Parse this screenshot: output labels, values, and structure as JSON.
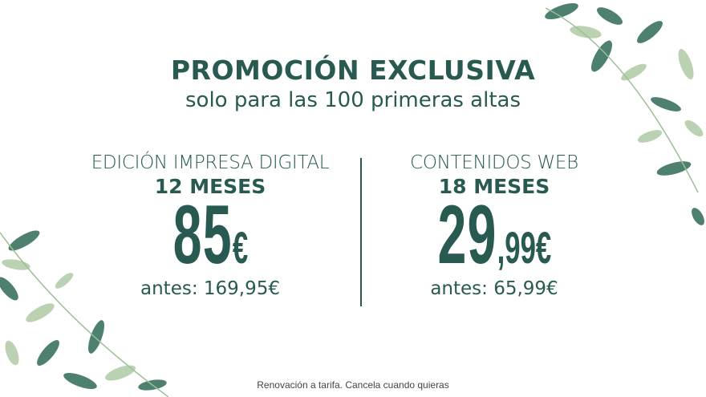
{
  "header": {
    "title": "PROMOCIÓN EXCLUSIVA",
    "subtitle": "solo para las 100 primeras altas"
  },
  "offers": [
    {
      "plan": "EDICIÓN IMPRESA DIGITAL",
      "duration": "12 MESES",
      "price_main": "85",
      "price_decimals": "",
      "currency": "€",
      "previous": "antes: 169,95€"
    },
    {
      "plan": "CONTENIDOS WEB",
      "duration": "18 MESES",
      "price_main": "29",
      "price_decimals": ",99",
      "currency": "€",
      "previous": "antes: 65,99€"
    }
  ],
  "footer": {
    "note": "Renovación a tarifa. Cancela cuando quieras"
  },
  "colors": {
    "primary": "#285a52",
    "background": "#ffffff",
    "leaf_dark": "#2f6b55",
    "leaf_light": "#a9c7a0"
  }
}
